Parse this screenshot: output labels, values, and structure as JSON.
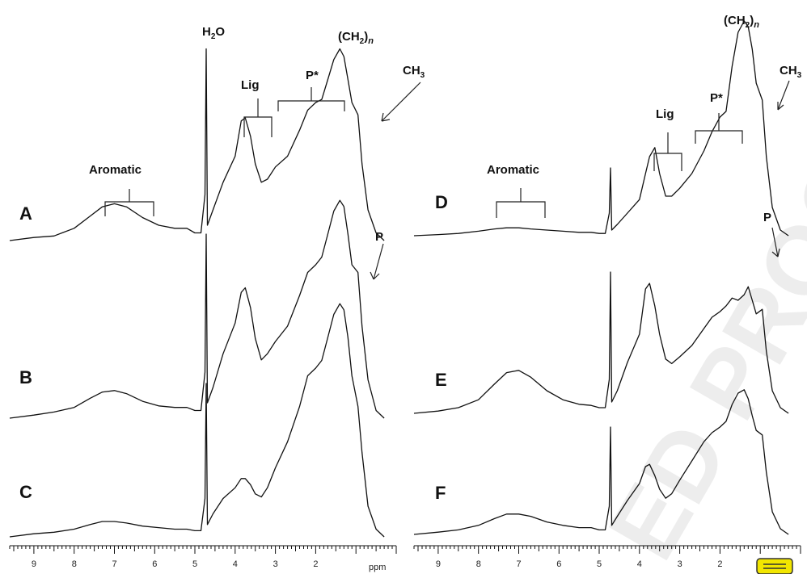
{
  "chart_data": [
    {
      "type": "line",
      "panel": "left",
      "xlabel": "ppm",
      "xlim": [
        9.6,
        0.0
      ],
      "x_ticks": [
        9,
        8,
        7,
        6,
        5,
        4,
        3,
        2
      ],
      "x_tick_labels": [
        "9",
        "8",
        "7",
        "6",
        "5",
        "4",
        "3",
        "2"
      ],
      "series": [
        {
          "name": "A",
          "values": [
            [
              9.6,
              0
            ],
            [
              9.0,
              0.02
            ],
            [
              8.5,
              0.03
            ],
            [
              8.3,
              0.05
            ],
            [
              8.0,
              0.08
            ],
            [
              7.6,
              0.16
            ],
            [
              7.3,
              0.22
            ],
            [
              7.0,
              0.24
            ],
            [
              6.7,
              0.22
            ],
            [
              6.3,
              0.15
            ],
            [
              5.9,
              0.1
            ],
            [
              5.5,
              0.08
            ],
            [
              5.2,
              0.08
            ],
            [
              5.0,
              0.05
            ],
            [
              4.85,
              0.05
            ],
            [
              4.75,
              0.3
            ],
            [
              4.72,
              1.25
            ],
            [
              4.69,
              0.1
            ],
            [
              4.55,
              0.2
            ],
            [
              4.3,
              0.38
            ],
            [
              4.0,
              0.55
            ],
            [
              3.85,
              0.78
            ],
            [
              3.75,
              0.8
            ],
            [
              3.62,
              0.68
            ],
            [
              3.5,
              0.5
            ],
            [
              3.35,
              0.38
            ],
            [
              3.2,
              0.4
            ],
            [
              3.0,
              0.48
            ],
            [
              2.7,
              0.55
            ],
            [
              2.4,
              0.72
            ],
            [
              2.2,
              0.85
            ],
            [
              2.0,
              0.9
            ],
            [
              1.85,
              0.92
            ],
            [
              1.7,
              1.05
            ],
            [
              1.55,
              1.18
            ],
            [
              1.4,
              1.25
            ],
            [
              1.3,
              1.2
            ],
            [
              1.2,
              1.05
            ],
            [
              1.1,
              0.9
            ],
            [
              0.95,
              0.82
            ],
            [
              0.85,
              0.5
            ],
            [
              0.7,
              0.2
            ],
            [
              0.5,
              0.05
            ],
            [
              0.3,
              0
            ]
          ]
        },
        {
          "name": "B",
          "values": [
            [
              9.6,
              0
            ],
            [
              9.0,
              0.02
            ],
            [
              8.5,
              0.04
            ],
            [
              8.0,
              0.07
            ],
            [
              7.6,
              0.13
            ],
            [
              7.3,
              0.17
            ],
            [
              7.0,
              0.18
            ],
            [
              6.7,
              0.16
            ],
            [
              6.3,
              0.11
            ],
            [
              5.9,
              0.08
            ],
            [
              5.5,
              0.07
            ],
            [
              5.2,
              0.07
            ],
            [
              5.0,
              0.05
            ],
            [
              4.85,
              0.05
            ],
            [
              4.75,
              0.3
            ],
            [
              4.72,
              1.2
            ],
            [
              4.69,
              0.1
            ],
            [
              4.55,
              0.2
            ],
            [
              4.3,
              0.42
            ],
            [
              4.0,
              0.62
            ],
            [
              3.85,
              0.82
            ],
            [
              3.75,
              0.85
            ],
            [
              3.62,
              0.72
            ],
            [
              3.5,
              0.52
            ],
            [
              3.35,
              0.38
            ],
            [
              3.2,
              0.42
            ],
            [
              3.0,
              0.5
            ],
            [
              2.7,
              0.6
            ],
            [
              2.4,
              0.8
            ],
            [
              2.2,
              0.95
            ],
            [
              2.0,
              1.0
            ],
            [
              1.85,
              1.05
            ],
            [
              1.7,
              1.2
            ],
            [
              1.55,
              1.35
            ],
            [
              1.4,
              1.42
            ],
            [
              1.3,
              1.38
            ],
            [
              1.2,
              1.2
            ],
            [
              1.1,
              1.0
            ],
            [
              0.95,
              0.95
            ],
            [
              0.85,
              0.6
            ],
            [
              0.7,
              0.25
            ],
            [
              0.5,
              0.05
            ],
            [
              0.3,
              0
            ]
          ]
        },
        {
          "name": "C",
          "values": [
            [
              9.6,
              0
            ],
            [
              9.0,
              0.02
            ],
            [
              8.5,
              0.03
            ],
            [
              8.0,
              0.05
            ],
            [
              7.6,
              0.08
            ],
            [
              7.3,
              0.1
            ],
            [
              7.0,
              0.1
            ],
            [
              6.7,
              0.09
            ],
            [
              6.3,
              0.07
            ],
            [
              5.9,
              0.06
            ],
            [
              5.5,
              0.05
            ],
            [
              5.2,
              0.05
            ],
            [
              5.0,
              0.04
            ],
            [
              4.85,
              0.04
            ],
            [
              4.75,
              0.25
            ],
            [
              4.72,
              1.0
            ],
            [
              4.69,
              0.08
            ],
            [
              4.55,
              0.15
            ],
            [
              4.3,
              0.25
            ],
            [
              4.0,
              0.32
            ],
            [
              3.85,
              0.38
            ],
            [
              3.75,
              0.38
            ],
            [
              3.62,
              0.34
            ],
            [
              3.5,
              0.28
            ],
            [
              3.35,
              0.26
            ],
            [
              3.2,
              0.32
            ],
            [
              3.0,
              0.45
            ],
            [
              2.7,
              0.62
            ],
            [
              2.4,
              0.85
            ],
            [
              2.2,
              1.05
            ],
            [
              2.0,
              1.1
            ],
            [
              1.85,
              1.15
            ],
            [
              1.7,
              1.3
            ],
            [
              1.55,
              1.45
            ],
            [
              1.4,
              1.52
            ],
            [
              1.3,
              1.48
            ],
            [
              1.2,
              1.3
            ],
            [
              1.1,
              1.05
            ],
            [
              0.95,
              0.85
            ],
            [
              0.85,
              0.55
            ],
            [
              0.7,
              0.2
            ],
            [
              0.5,
              0.05
            ],
            [
              0.3,
              0
            ]
          ]
        }
      ],
      "annotations": {
        "water": "H2O",
        "ch2n": "(CH2)n",
        "ch3": "CH3",
        "lig": "Lig",
        "pstar": "P*",
        "aromatic": "Aromatic",
        "p": "P"
      }
    },
    {
      "type": "line",
      "panel": "right",
      "xlabel": "",
      "xlim": [
        9.6,
        0.0
      ],
      "x_ticks": [
        9,
        8,
        7,
        6,
        5,
        4,
        3,
        2
      ],
      "x_tick_labels": [
        "9",
        "8",
        "7",
        "6",
        "5",
        "4",
        "3",
        "2"
      ],
      "series": [
        {
          "name": "D",
          "values": [
            [
              9.6,
              0
            ],
            [
              9.0,
              0.01
            ],
            [
              8.5,
              0.02
            ],
            [
              8.0,
              0.04
            ],
            [
              7.6,
              0.06
            ],
            [
              7.3,
              0.07
            ],
            [
              7.0,
              0.07
            ],
            [
              6.7,
              0.06
            ],
            [
              6.3,
              0.05
            ],
            [
              5.9,
              0.04
            ],
            [
              5.5,
              0.03
            ],
            [
              5.2,
              0.03
            ],
            [
              5.0,
              0.02
            ],
            [
              4.85,
              0.02
            ],
            [
              4.75,
              0.2
            ],
            [
              4.72,
              0.6
            ],
            [
              4.69,
              0.05
            ],
            [
              4.55,
              0.1
            ],
            [
              4.3,
              0.2
            ],
            [
              4.0,
              0.32
            ],
            [
              3.85,
              0.55
            ],
            [
              3.75,
              0.7
            ],
            [
              3.62,
              0.78
            ],
            [
              3.5,
              0.55
            ],
            [
              3.35,
              0.35
            ],
            [
              3.2,
              0.35
            ],
            [
              3.0,
              0.42
            ],
            [
              2.7,
              0.55
            ],
            [
              2.4,
              0.75
            ],
            [
              2.2,
              0.92
            ],
            [
              2.0,
              1.05
            ],
            [
              1.85,
              1.1
            ],
            [
              1.7,
              1.5
            ],
            [
              1.55,
              1.8
            ],
            [
              1.4,
              1.9
            ],
            [
              1.3,
              1.85
            ],
            [
              1.2,
              1.65
            ],
            [
              1.1,
              1.35
            ],
            [
              0.95,
              1.2
            ],
            [
              0.85,
              0.7
            ],
            [
              0.7,
              0.25
            ],
            [
              0.5,
              0.05
            ],
            [
              0.3,
              0
            ]
          ]
        },
        {
          "name": "E",
          "values": [
            [
              9.6,
              0
            ],
            [
              9.0,
              0.02
            ],
            [
              8.5,
              0.05
            ],
            [
              8.0,
              0.12
            ],
            [
              7.6,
              0.26
            ],
            [
              7.3,
              0.36
            ],
            [
              7.0,
              0.38
            ],
            [
              6.7,
              0.32
            ],
            [
              6.3,
              0.2
            ],
            [
              5.9,
              0.12
            ],
            [
              5.5,
              0.08
            ],
            [
              5.2,
              0.07
            ],
            [
              5.0,
              0.05
            ],
            [
              4.85,
              0.05
            ],
            [
              4.75,
              0.3
            ],
            [
              4.72,
              1.25
            ],
            [
              4.69,
              0.1
            ],
            [
              4.55,
              0.2
            ],
            [
              4.3,
              0.45
            ],
            [
              4.0,
              0.7
            ],
            [
              3.85,
              1.1
            ],
            [
              3.75,
              1.15
            ],
            [
              3.62,
              0.95
            ],
            [
              3.5,
              0.7
            ],
            [
              3.35,
              0.48
            ],
            [
              3.2,
              0.44
            ],
            [
              3.0,
              0.5
            ],
            [
              2.7,
              0.6
            ],
            [
              2.4,
              0.75
            ],
            [
              2.2,
              0.85
            ],
            [
              2.0,
              0.9
            ],
            [
              1.85,
              0.95
            ],
            [
              1.7,
              1.02
            ],
            [
              1.55,
              1.0
            ],
            [
              1.4,
              1.05
            ],
            [
              1.3,
              1.12
            ],
            [
              1.2,
              1.0
            ],
            [
              1.1,
              0.88
            ],
            [
              0.95,
              0.92
            ],
            [
              0.85,
              0.55
            ],
            [
              0.7,
              0.2
            ],
            [
              0.5,
              0.05
            ],
            [
              0.3,
              0
            ]
          ]
        },
        {
          "name": "F",
          "values": [
            [
              9.6,
              0
            ],
            [
              9.0,
              0.02
            ],
            [
              8.5,
              0.04
            ],
            [
              8.0,
              0.08
            ],
            [
              7.6,
              0.14
            ],
            [
              7.3,
              0.18
            ],
            [
              7.0,
              0.18
            ],
            [
              6.7,
              0.16
            ],
            [
              6.3,
              0.11
            ],
            [
              5.9,
              0.08
            ],
            [
              5.5,
              0.06
            ],
            [
              5.2,
              0.06
            ],
            [
              5.0,
              0.04
            ],
            [
              4.85,
              0.04
            ],
            [
              4.75,
              0.25
            ],
            [
              4.72,
              0.95
            ],
            [
              4.69,
              0.08
            ],
            [
              4.55,
              0.16
            ],
            [
              4.3,
              0.3
            ],
            [
              4.0,
              0.45
            ],
            [
              3.85,
              0.6
            ],
            [
              3.75,
              0.62
            ],
            [
              3.62,
              0.52
            ],
            [
              3.5,
              0.4
            ],
            [
              3.35,
              0.32
            ],
            [
              3.2,
              0.36
            ],
            [
              3.0,
              0.48
            ],
            [
              2.7,
              0.65
            ],
            [
              2.4,
              0.82
            ],
            [
              2.2,
              0.9
            ],
            [
              2.0,
              0.95
            ],
            [
              1.85,
              1.0
            ],
            [
              1.7,
              1.15
            ],
            [
              1.55,
              1.25
            ],
            [
              1.4,
              1.28
            ],
            [
              1.3,
              1.2
            ],
            [
              1.2,
              1.05
            ],
            [
              1.1,
              0.92
            ],
            [
              0.95,
              0.88
            ],
            [
              0.85,
              0.55
            ],
            [
              0.7,
              0.2
            ],
            [
              0.5,
              0.05
            ],
            [
              0.3,
              0
            ]
          ]
        }
      ],
      "annotations": {
        "ch2n": "(CH2)n",
        "ch3": "CH3",
        "lig": "Lig",
        "pstar": "P*",
        "aromatic": "Aromatic",
        "p": "P"
      }
    }
  ],
  "watermark": "ED PROOF",
  "accent_color": "#f2e600"
}
